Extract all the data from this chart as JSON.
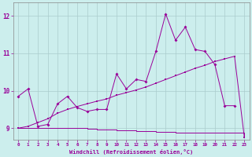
{
  "xlabel": "Windchill (Refroidissement éolien,°C)",
  "bg_color": "#cceeed",
  "grid_color": "#aacccc",
  "line_color": "#990099",
  "xlim": [
    -0.5,
    23.5
  ],
  "ylim": [
    8.7,
    12.35
  ],
  "yticks": [
    9,
    10,
    11,
    12
  ],
  "xticks": [
    0,
    1,
    2,
    3,
    4,
    5,
    6,
    7,
    8,
    9,
    10,
    11,
    12,
    13,
    14,
    15,
    16,
    17,
    18,
    19,
    20,
    21,
    22,
    23
  ],
  "series1_x": [
    0,
    1,
    2,
    3,
    4,
    5,
    6,
    7,
    8,
    9,
    10,
    11,
    12,
    13,
    14,
    15,
    16,
    17,
    18,
    19,
    20,
    21,
    22
  ],
  "series1_y": [
    9.85,
    10.05,
    9.05,
    9.1,
    9.65,
    9.85,
    9.55,
    9.45,
    9.5,
    9.5,
    10.45,
    10.05,
    10.3,
    10.25,
    11.05,
    12.05,
    11.35,
    11.7,
    11.1,
    11.05,
    10.7,
    9.6,
    9.6
  ],
  "series2_x": [
    0,
    1,
    2,
    3,
    4,
    5,
    6,
    7,
    8,
    9,
    10,
    11,
    12,
    13,
    14,
    15,
    16,
    17,
    18,
    19,
    20,
    21,
    22,
    23
  ],
  "series2_y": [
    9.0,
    9.05,
    9.15,
    9.25,
    9.4,
    9.5,
    9.58,
    9.65,
    9.72,
    9.78,
    9.88,
    9.95,
    10.02,
    10.1,
    10.2,
    10.3,
    10.4,
    10.5,
    10.6,
    10.68,
    10.78,
    10.85,
    10.92,
    8.75
  ],
  "series3_x": [
    0,
    1,
    2,
    3,
    4,
    5,
    6,
    7,
    8,
    9,
    10,
    11,
    12,
    13,
    14,
    15,
    16,
    17,
    18,
    19,
    20,
    21,
    22,
    23
  ],
  "series3_y": [
    9.0,
    9.0,
    9.0,
    9.0,
    9.0,
    9.0,
    9.0,
    8.98,
    8.97,
    8.96,
    8.95,
    8.94,
    8.93,
    8.92,
    8.91,
    8.9,
    8.89,
    8.88,
    8.87,
    8.87,
    8.87,
    8.87,
    8.87,
    8.75
  ]
}
